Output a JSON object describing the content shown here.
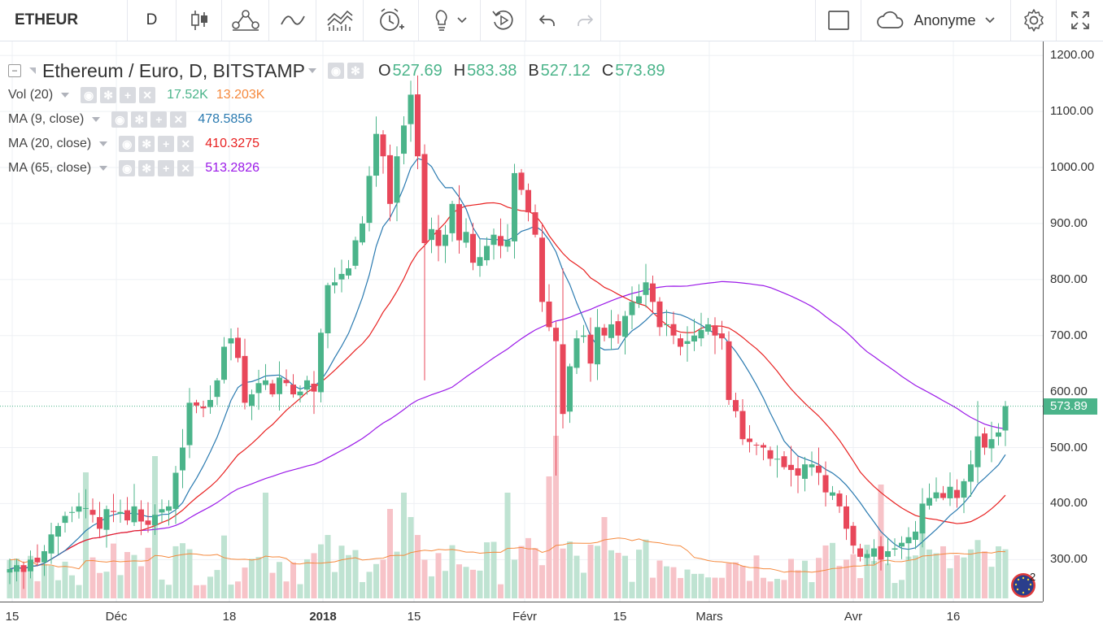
{
  "toolbar": {
    "symbol": "ETHEUR",
    "interval": "D",
    "user": "Anonyme"
  },
  "legend": {
    "title": "Ethereum / Euro, D, BITSTAMP",
    "ohlc": [
      {
        "key": "O",
        "value": "527.69"
      },
      {
        "key": "H",
        "value": "583.38"
      },
      {
        "key": "B",
        "value": "527.12"
      },
      {
        "key": "C",
        "value": "573.89"
      }
    ],
    "indicators": [
      {
        "name": "Vol (20)",
        "values": [
          {
            "v": "17.52K",
            "color": "#4bb48a"
          },
          {
            "v": "13.203K",
            "color": "#f5893d"
          }
        ]
      },
      {
        "name": "MA (9, close)",
        "values": [
          {
            "v": "478.5856",
            "color": "#2a7ab0"
          }
        ]
      },
      {
        "name": "MA (20, close)",
        "values": [
          {
            "v": "410.3275",
            "color": "#e82020"
          }
        ]
      },
      {
        "name": "MA (65, close)",
        "values": [
          {
            "v": "513.2826",
            "color": "#9b19e8"
          }
        ]
      }
    ]
  },
  "colors": {
    "up": "#4bb48a",
    "down": "#e8475a",
    "ma9": "#2a7ab0",
    "ma20": "#e82020",
    "ma65": "#9b19e8",
    "volma": "#f5893d",
    "grid": "#eef0f4"
  },
  "price_axis": {
    "labels": [
      "1200.00",
      "1100.00",
      "1000.00",
      "900.00",
      "800.00",
      "700.00",
      "600.00",
      "500.00",
      "400.00",
      "300.00"
    ],
    "last_price": "573.89"
  },
  "time_axis": {
    "labels": [
      {
        "t": "15",
        "bold": false
      },
      {
        "t": "Déc",
        "bold": false
      },
      {
        "t": "18",
        "bold": false
      },
      {
        "t": "2018",
        "bold": true
      },
      {
        "t": "15",
        "bold": false
      },
      {
        "t": "Févr",
        "bold": false
      },
      {
        "t": "15",
        "bold": false
      },
      {
        "t": "Mars",
        "bold": false
      },
      {
        "t": "Avr",
        "bold": false
      },
      {
        "t": "16",
        "bold": false
      }
    ]
  },
  "chart_data": {
    "type": "candlestick",
    "symbol": "ETHEUR",
    "period": "2017-11-15 to 2018-04-24",
    "ylim": [
      225,
      1225
    ],
    "series_close": [
      283,
      290,
      278,
      300,
      295,
      315,
      345,
      360,
      378,
      385,
      395,
      392,
      380,
      355,
      390,
      385,
      385,
      370,
      395,
      368,
      362,
      380,
      390,
      395,
      455,
      500,
      580,
      575,
      570,
      585,
      620,
      680,
      695,
      660,
      580,
      595,
      615,
      620,
      595,
      625,
      615,
      595,
      600,
      620,
      600,
      705,
      790,
      795,
      810,
      820,
      870,
      900,
      985,
      1060,
      1020,
      935,
      1020,
      1075,
      1130,
      1020,
      865,
      890,
      860,
      880,
      935,
      870,
      885,
      830,
      840,
      860,
      880,
      860,
      870,
      990,
      960,
      920,
      880,
      760,
      715,
      690,
      560,
      645,
      695,
      700,
      650,
      715,
      700,
      720,
      700,
      735,
      760,
      770,
      795,
      760,
      715,
      720,
      700,
      680,
      690,
      700,
      710,
      720,
      700,
      695,
      585,
      565,
      515,
      510,
      505,
      500,
      480,
      480,
      465,
      460,
      450,
      470,
      470,
      455,
      420,
      420,
      395,
      355,
      325,
      305,
      310,
      320,
      300,
      315,
      320,
      330,
      340,
      350,
      400,
      410,
      420,
      410,
      430,
      410,
      440,
      470,
      520,
      500,
      515,
      527,
      574
    ],
    "ma9_last": 478.5856,
    "ma20_last": 410.3275,
    "ma65_last": 513.2826,
    "volume_last": "17.52K",
    "volume_ma_last": "13.203K",
    "last": 573.89
  }
}
